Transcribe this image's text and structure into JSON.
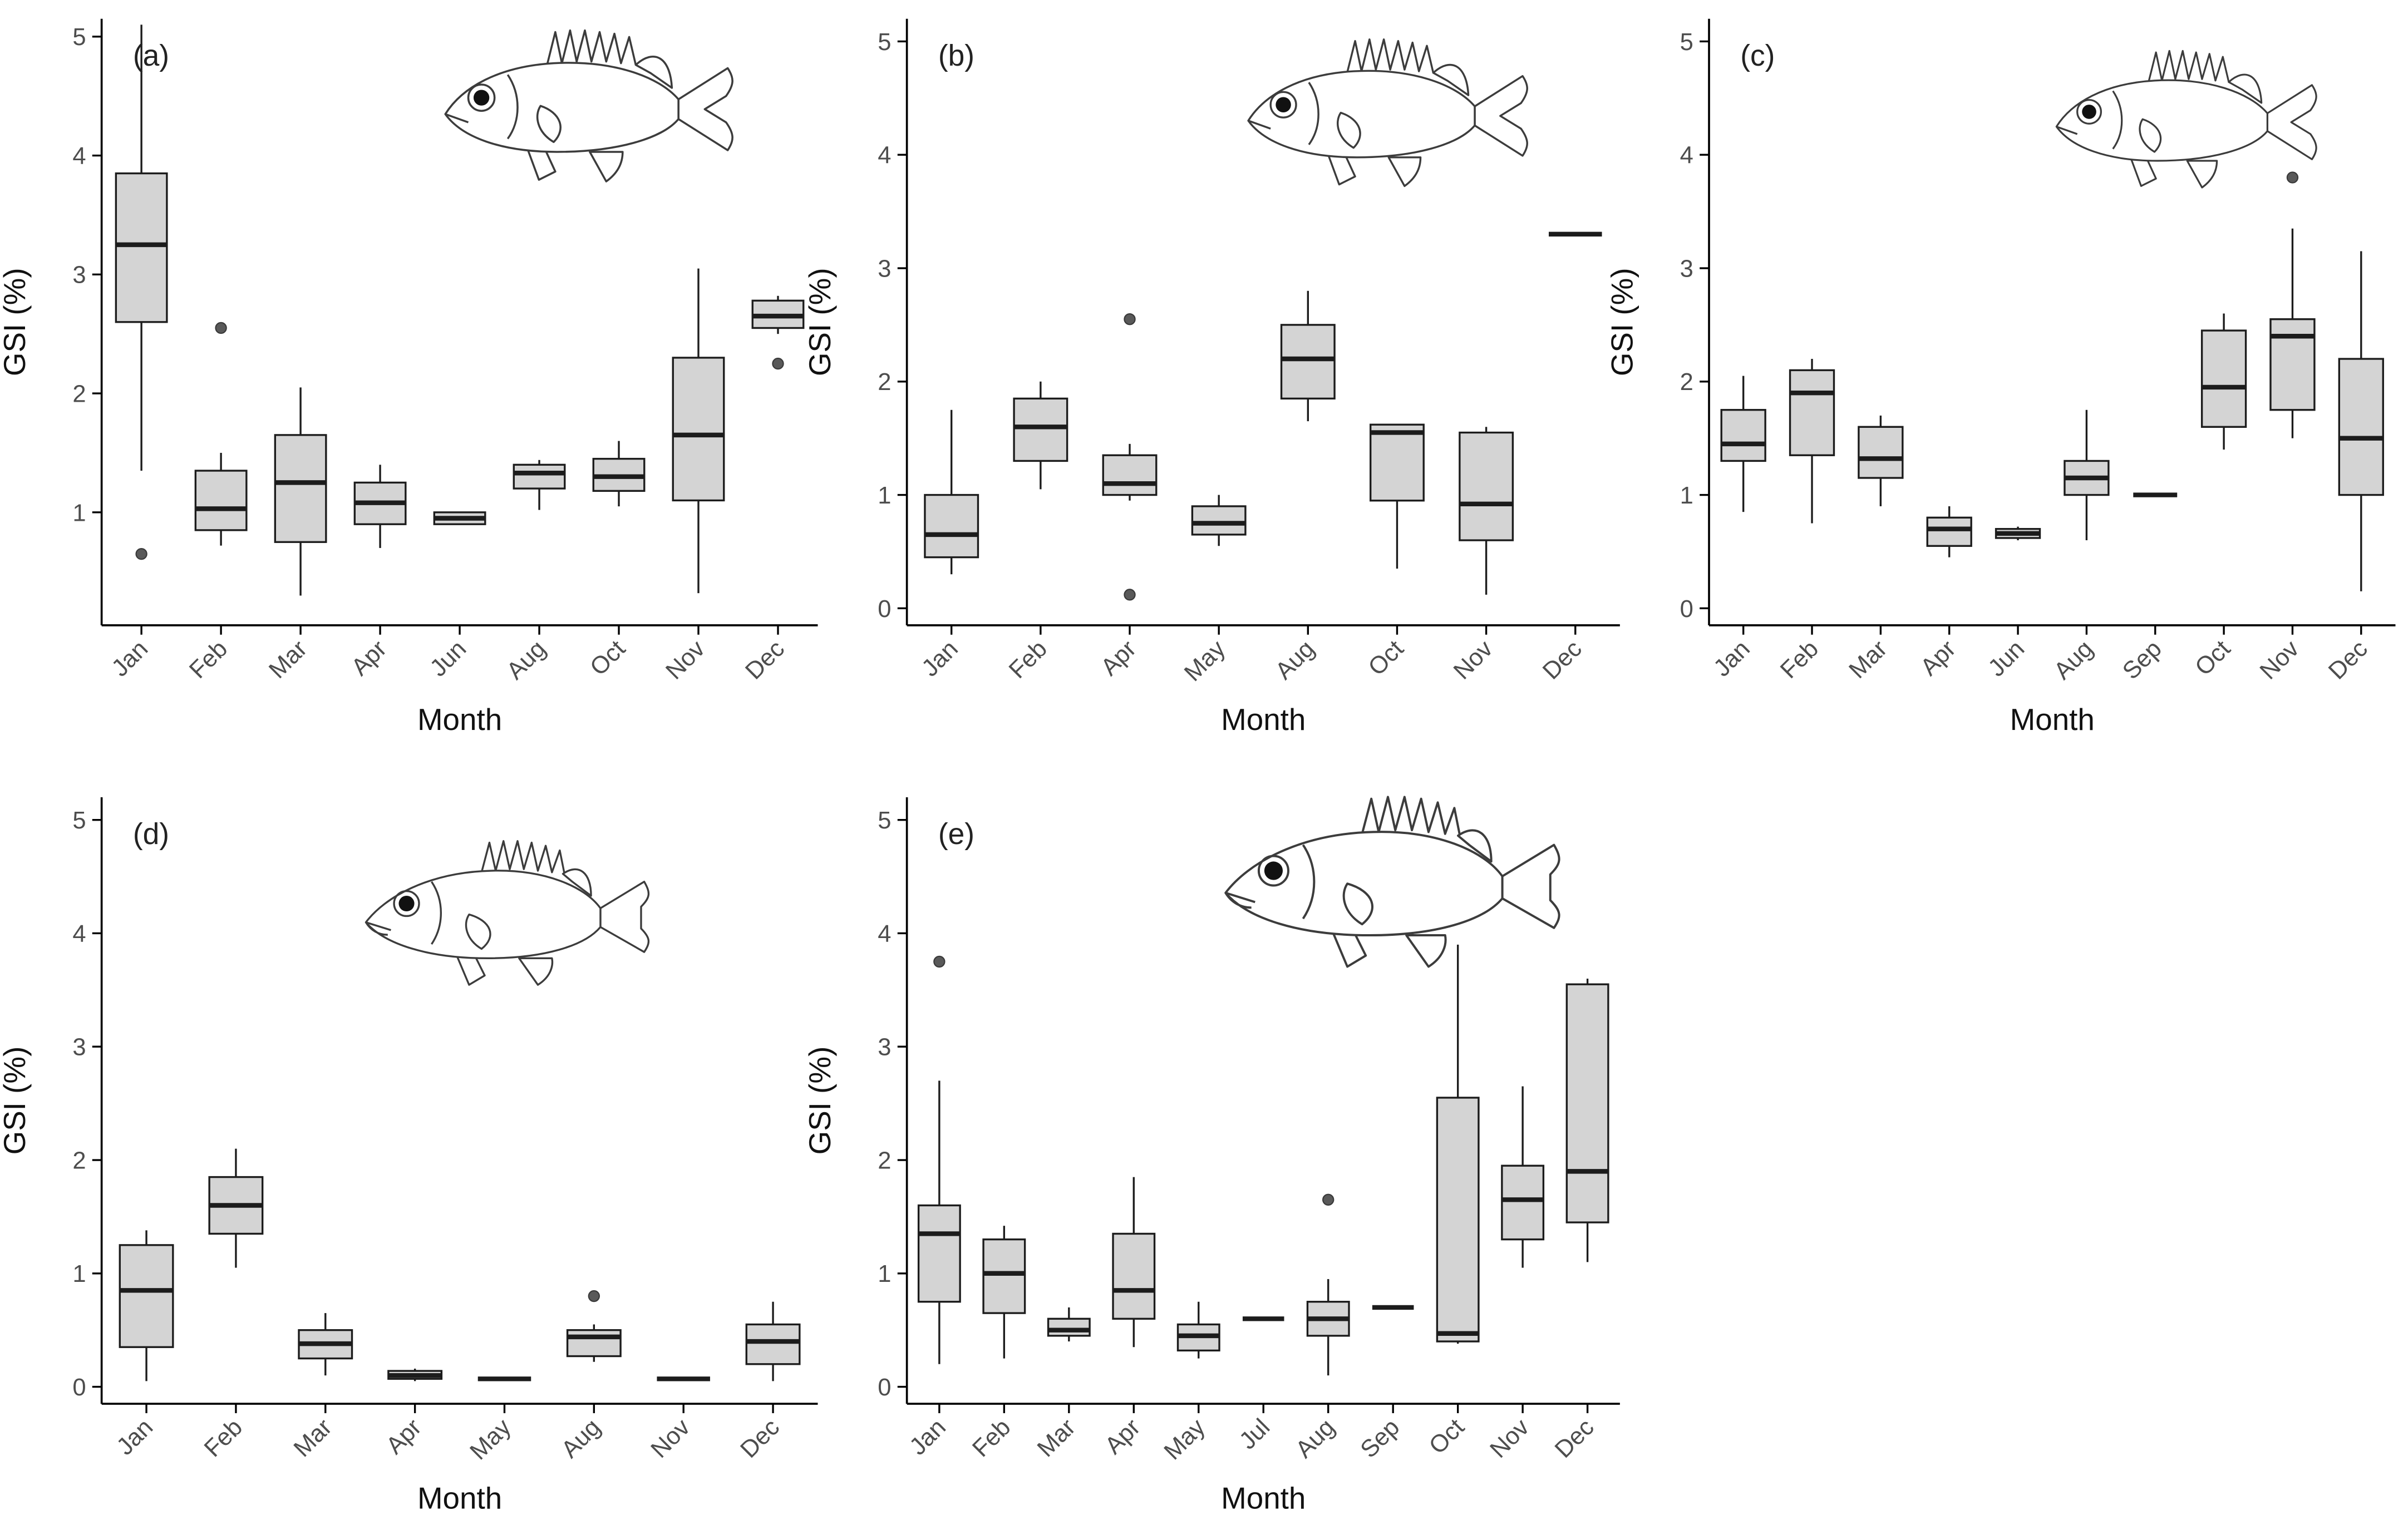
{
  "figure": {
    "colors": {
      "background": "#ffffff",
      "axis": "#000000",
      "tick_label": "#4d4d4d",
      "axis_title": "#111111",
      "panel_label": "#222222",
      "box_fill": "#d4d4d4",
      "box_stroke": "#1c1c1c",
      "median": "#1c1c1c",
      "outlier": "#595959"
    }
  },
  "chart_data": [
    {
      "type": "boxplot",
      "panel_label": "(a)",
      "xlabel": "Month",
      "ylabel": "GSI (%)",
      "ylim": [
        0.05,
        5.15
      ],
      "yticks": [
        1,
        2,
        3,
        4,
        5
      ],
      "fish_icon": "soldierfish-line-drawing",
      "categories": [
        "Jan",
        "Feb",
        "Mar",
        "Apr",
        "Jun",
        "Aug",
        "Oct",
        "Nov",
        "Dec"
      ],
      "boxes": [
        {
          "month": "Jan",
          "whisker_low": 1.35,
          "q1": 2.6,
          "median": 3.25,
          "q3": 3.85,
          "whisker_high": 5.1,
          "outliers": [
            0.65
          ]
        },
        {
          "month": "Feb",
          "whisker_low": 0.72,
          "q1": 0.85,
          "median": 1.03,
          "q3": 1.35,
          "whisker_high": 1.5,
          "outliers": [
            2.55
          ]
        },
        {
          "month": "Mar",
          "whisker_low": 0.3,
          "q1": 0.75,
          "median": 1.25,
          "q3": 1.65,
          "whisker_high": 2.05,
          "outliers": []
        },
        {
          "month": "Apr",
          "whisker_low": 0.7,
          "q1": 0.9,
          "median": 1.08,
          "q3": 1.25,
          "whisker_high": 1.4,
          "outliers": []
        },
        {
          "month": "Jun",
          "whisker_low": 0.9,
          "q1": 0.9,
          "median": 0.95,
          "q3": 1.0,
          "whisker_high": 1.0,
          "outliers": []
        },
        {
          "month": "Aug",
          "whisker_low": 1.02,
          "q1": 1.2,
          "median": 1.33,
          "q3": 1.4,
          "whisker_high": 1.44,
          "outliers": []
        },
        {
          "month": "Oct",
          "whisker_low": 1.05,
          "q1": 1.18,
          "median": 1.3,
          "q3": 1.45,
          "whisker_high": 1.6,
          "outliers": []
        },
        {
          "month": "Nov",
          "whisker_low": 0.32,
          "q1": 1.1,
          "median": 1.65,
          "q3": 2.3,
          "whisker_high": 3.05,
          "outliers": []
        },
        {
          "month": "Dec",
          "whisker_low": 2.5,
          "q1": 2.55,
          "median": 2.65,
          "q3": 2.78,
          "whisker_high": 2.82,
          "outliers": [
            2.25
          ]
        }
      ]
    },
    {
      "type": "boxplot",
      "panel_label": "(b)",
      "xlabel": "Month",
      "ylabel": "GSI (%)",
      "ylim": [
        -0.15,
        5.2
      ],
      "yticks": [
        0,
        1,
        2,
        3,
        4,
        5
      ],
      "fish_icon": "soldierfish-line-drawing",
      "categories": [
        "Jan",
        "Feb",
        "Apr",
        "May",
        "Aug",
        "Oct",
        "Nov",
        "Dec"
      ],
      "boxes": [
        {
          "month": "Jan",
          "whisker_low": 0.3,
          "q1": 0.45,
          "median": 0.65,
          "q3": 1.0,
          "whisker_high": 1.75,
          "outliers": []
        },
        {
          "month": "Feb",
          "whisker_low": 1.05,
          "q1": 1.3,
          "median": 1.6,
          "q3": 1.85,
          "whisker_high": 2.0,
          "outliers": []
        },
        {
          "month": "Apr",
          "whisker_low": 0.95,
          "q1": 1.0,
          "median": 1.1,
          "q3": 1.35,
          "whisker_high": 1.45,
          "outliers": [
            2.55,
            0.12
          ]
        },
        {
          "month": "May",
          "whisker_low": 0.55,
          "q1": 0.65,
          "median": 0.75,
          "q3": 0.9,
          "whisker_high": 1.0,
          "outliers": []
        },
        {
          "month": "Aug",
          "whisker_low": 1.65,
          "q1": 1.85,
          "median": 2.2,
          "q3": 2.5,
          "whisker_high": 2.8,
          "outliers": []
        },
        {
          "month": "Oct",
          "whisker_low": 0.35,
          "q1": 0.95,
          "median": 1.55,
          "q3": 1.62,
          "whisker_high": 1.62,
          "outliers": []
        },
        {
          "month": "Nov",
          "whisker_low": 0.12,
          "q1": 0.6,
          "median": 0.92,
          "q3": 1.55,
          "whisker_high": 1.6,
          "outliers": []
        },
        {
          "month": "Dec",
          "whisker_low": 3.3,
          "q1": 3.3,
          "median": 3.3,
          "q3": 3.3,
          "whisker_high": 3.3,
          "outliers": []
        }
      ]
    },
    {
      "type": "boxplot",
      "panel_label": "(c)",
      "xlabel": "Month",
      "ylabel": "GSI (%)",
      "ylim": [
        -0.15,
        5.2
      ],
      "yticks": [
        0,
        1,
        2,
        3,
        4,
        5
      ],
      "fish_icon": "soldierfish-line-drawing",
      "categories": [
        "Jan",
        "Feb",
        "Mar",
        "Apr",
        "Jun",
        "Aug",
        "Sep",
        "Oct",
        "Nov",
        "Dec"
      ],
      "boxes": [
        {
          "month": "Jan",
          "whisker_low": 0.85,
          "q1": 1.3,
          "median": 1.45,
          "q3": 1.75,
          "whisker_high": 2.05,
          "outliers": []
        },
        {
          "month": "Feb",
          "whisker_low": 0.75,
          "q1": 1.35,
          "median": 1.9,
          "q3": 2.1,
          "whisker_high": 2.2,
          "outliers": []
        },
        {
          "month": "Mar",
          "whisker_low": 0.9,
          "q1": 1.15,
          "median": 1.32,
          "q3": 1.6,
          "whisker_high": 1.7,
          "outliers": []
        },
        {
          "month": "Apr",
          "whisker_low": 0.45,
          "q1": 0.55,
          "median": 0.7,
          "q3": 0.8,
          "whisker_high": 0.9,
          "outliers": []
        },
        {
          "month": "Jun",
          "whisker_low": 0.6,
          "q1": 0.62,
          "median": 0.66,
          "q3": 0.7,
          "whisker_high": 0.72,
          "outliers": []
        },
        {
          "month": "Aug",
          "whisker_low": 0.6,
          "q1": 1.0,
          "median": 1.15,
          "q3": 1.3,
          "whisker_high": 1.75,
          "outliers": []
        },
        {
          "month": "Sep",
          "whisker_low": 1.0,
          "q1": 1.0,
          "median": 1.0,
          "q3": 1.0,
          "whisker_high": 1.0,
          "outliers": []
        },
        {
          "month": "Oct",
          "whisker_low": 1.4,
          "q1": 1.6,
          "median": 1.95,
          "q3": 2.45,
          "whisker_high": 2.6,
          "outliers": []
        },
        {
          "month": "Nov",
          "whisker_low": 1.5,
          "q1": 1.75,
          "median": 2.4,
          "q3": 2.55,
          "whisker_high": 3.35,
          "outliers": [
            3.8
          ]
        },
        {
          "month": "Dec",
          "whisker_low": 0.15,
          "q1": 1.0,
          "median": 1.5,
          "q3": 2.2,
          "whisker_high": 3.15,
          "outliers": []
        }
      ]
    },
    {
      "type": "boxplot",
      "panel_label": "(d)",
      "xlabel": "Month",
      "ylabel": "GSI (%)",
      "ylim": [
        -0.15,
        5.2
      ],
      "yticks": [
        0,
        1,
        2,
        3,
        4,
        5
      ],
      "fish_icon": "snapper-line-drawing",
      "categories": [
        "Jan",
        "Feb",
        "Mar",
        "Apr",
        "May",
        "Aug",
        "Nov",
        "Dec"
      ],
      "boxes": [
        {
          "month": "Jan",
          "whisker_low": 0.05,
          "q1": 0.35,
          "median": 0.85,
          "q3": 1.25,
          "whisker_high": 1.38,
          "outliers": []
        },
        {
          "month": "Feb",
          "whisker_low": 1.05,
          "q1": 1.35,
          "median": 1.6,
          "q3": 1.85,
          "whisker_high": 2.1,
          "outliers": []
        },
        {
          "month": "Mar",
          "whisker_low": 0.1,
          "q1": 0.25,
          "median": 0.38,
          "q3": 0.5,
          "whisker_high": 0.65,
          "outliers": []
        },
        {
          "month": "Apr",
          "whisker_low": 0.05,
          "q1": 0.07,
          "median": 0.1,
          "q3": 0.14,
          "whisker_high": 0.16,
          "outliers": []
        },
        {
          "month": "May",
          "whisker_low": 0.07,
          "q1": 0.07,
          "median": 0.07,
          "q3": 0.07,
          "whisker_high": 0.07,
          "outliers": []
        },
        {
          "month": "Aug",
          "whisker_low": 0.22,
          "q1": 0.27,
          "median": 0.44,
          "q3": 0.5,
          "whisker_high": 0.55,
          "outliers": [
            0.8
          ]
        },
        {
          "month": "Nov",
          "whisker_low": 0.07,
          "q1": 0.07,
          "median": 0.07,
          "q3": 0.07,
          "whisker_high": 0.07,
          "outliers": []
        },
        {
          "month": "Dec",
          "whisker_low": 0.05,
          "q1": 0.2,
          "median": 0.4,
          "q3": 0.55,
          "whisker_high": 0.75,
          "outliers": []
        }
      ]
    },
    {
      "type": "boxplot",
      "panel_label": "(e)",
      "xlabel": "Month",
      "ylabel": "GSI (%)",
      "ylim": [
        -0.15,
        5.2
      ],
      "yticks": [
        0,
        1,
        2,
        3,
        4,
        5
      ],
      "fish_icon": "snapper-line-drawing",
      "categories": [
        "Jan",
        "Feb",
        "Mar",
        "Apr",
        "May",
        "Jul",
        "Aug",
        "Sep",
        "Oct",
        "Nov",
        "Dec"
      ],
      "boxes": [
        {
          "month": "Jan",
          "whisker_low": 0.2,
          "q1": 0.75,
          "median": 1.35,
          "q3": 1.6,
          "whisker_high": 2.7,
          "outliers": [
            3.75
          ]
        },
        {
          "month": "Feb",
          "whisker_low": 0.25,
          "q1": 0.65,
          "median": 1.0,
          "q3": 1.3,
          "whisker_high": 1.42,
          "outliers": []
        },
        {
          "month": "Mar",
          "whisker_low": 0.4,
          "q1": 0.45,
          "median": 0.5,
          "q3": 0.6,
          "whisker_high": 0.7,
          "outliers": []
        },
        {
          "month": "Apr",
          "whisker_low": 0.35,
          "q1": 0.6,
          "median": 0.85,
          "q3": 1.35,
          "whisker_high": 1.85,
          "outliers": []
        },
        {
          "month": "May",
          "whisker_low": 0.25,
          "q1": 0.32,
          "median": 0.45,
          "q3": 0.55,
          "whisker_high": 0.75,
          "outliers": []
        },
        {
          "month": "Jul",
          "whisker_low": 0.6,
          "q1": 0.6,
          "median": 0.6,
          "q3": 0.6,
          "whisker_high": 0.6,
          "outliers": []
        },
        {
          "month": "Aug",
          "whisker_low": 0.1,
          "q1": 0.45,
          "median": 0.6,
          "q3": 0.75,
          "whisker_high": 0.95,
          "outliers": [
            1.65
          ]
        },
        {
          "month": "Sep",
          "whisker_low": 0.7,
          "q1": 0.7,
          "median": 0.7,
          "q3": 0.7,
          "whisker_high": 0.7,
          "outliers": []
        },
        {
          "month": "Oct",
          "whisker_low": 0.38,
          "q1": 0.4,
          "median": 0.47,
          "q3": 2.55,
          "whisker_high": 3.9,
          "outliers": []
        },
        {
          "month": "Nov",
          "whisker_low": 1.05,
          "q1": 1.3,
          "median": 1.65,
          "q3": 1.95,
          "whisker_high": 2.65,
          "outliers": []
        },
        {
          "month": "Dec",
          "whisker_low": 1.1,
          "q1": 1.45,
          "median": 1.9,
          "q3": 3.55,
          "whisker_high": 3.6,
          "outliers": []
        }
      ]
    }
  ]
}
